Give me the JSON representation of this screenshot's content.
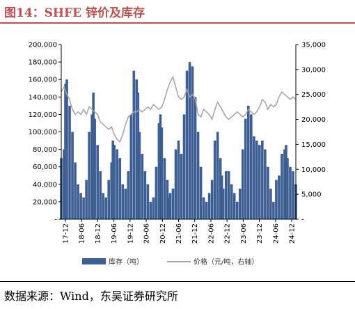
{
  "header": {
    "title": "图14：SHFE 锌价及库存"
  },
  "footer": {
    "source": "数据来源：Wind，东吴证券研究所"
  },
  "colors": {
    "title": "#c0504d",
    "inventory": "#3d5f93",
    "price": "#a6a6a6"
  },
  "chart_data": {
    "type": "bar",
    "x_tick_labels": [
      "17-12",
      "18-06",
      "18-12",
      "19-06",
      "19-12",
      "20-06",
      "20-12",
      "21-06",
      "21-12",
      "22-06",
      "22-12",
      "23-06",
      "23-12",
      "24-06",
      "24-12"
    ],
    "y_left": {
      "ylim": [
        0,
        200000
      ],
      "tick_labels": [
        "-",
        "20,000",
        "40,000",
        "60,000",
        "80,000",
        "100,000",
        "120,000",
        "140,000",
        "160,000",
        "180,000",
        "200,000"
      ]
    },
    "y_right": {
      "ylim": [
        0,
        35000
      ],
      "tick_labels": [
        "-",
        "5,000",
        "10,000",
        "15,000",
        "20,000",
        "25,000",
        "30,000",
        "35,000"
      ]
    },
    "legend": {
      "position": "bottom",
      "entries": [
        "库存（吨）",
        "价格（元/吨，右轴）"
      ]
    },
    "series": [
      {
        "name": "库存（吨）",
        "type": "bar",
        "axis": "left",
        "x": [
          0,
          1,
          1.5,
          2,
          3,
          4,
          5,
          6,
          7,
          8,
          9,
          10,
          11,
          11.5,
          12,
          13,
          14,
          15,
          16,
          17,
          18,
          18.5,
          19,
          20,
          21,
          22,
          23,
          24,
          25,
          26,
          27,
          27.5,
          28,
          29,
          30,
          31,
          32,
          33,
          34,
          35,
          35.5,
          36,
          37,
          38,
          38.5,
          39,
          40,
          41,
          42,
          43,
          44,
          45,
          46,
          47,
          48,
          49,
          50,
          51,
          52,
          53,
          54,
          55,
          56,
          57,
          57.5,
          58,
          59,
          60,
          61,
          62,
          63,
          64,
          65,
          66,
          67,
          68,
          69,
          70,
          71,
          72,
          73,
          74,
          75,
          76,
          77,
          78,
          79,
          80,
          80.5,
          81,
          82,
          83,
          84
        ],
        "values": [
          70000,
          80000,
          155000,
          160000,
          130000,
          100000,
          65000,
          40000,
          30000,
          25000,
          45000,
          100000,
          120000,
          145000,
          115000,
          85000,
          55000,
          30000,
          25000,
          45000,
          65000,
          90000,
          85000,
          80000,
          70000,
          40000,
          35000,
          55000,
          120000,
          170000,
          160000,
          145000,
          100000,
          75000,
          55000,
          40000,
          20000,
          25000,
          60000,
          110000,
          120000,
          105000,
          70000,
          45000,
          25000,
          30000,
          35000,
          80000,
          90000,
          75000,
          120000,
          170000,
          180000,
          175000,
          140000,
          100000,
          60000,
          25000,
          20000,
          30000,
          45000,
          90000,
          100000,
          70000,
          50000,
          35000,
          55000,
          55000,
          40000,
          30000,
          20000,
          35000,
          80000,
          115000,
          130000,
          120000,
          95000,
          90000,
          85000,
          90000,
          80000,
          60000,
          35000,
          20000,
          45000,
          50000,
          75000,
          80000,
          85000,
          70000,
          60000,
          55000,
          40000
        ],
        "description_note": ""
      },
      {
        "name": "价格（元/吨，右轴）",
        "type": "line",
        "axis": "right",
        "x": [
          0,
          1,
          2,
          3,
          4,
          5,
          6,
          7,
          8,
          9,
          10,
          11,
          12,
          13,
          14,
          15,
          16,
          17,
          18,
          19,
          20,
          21,
          22,
          23,
          24,
          25,
          26,
          27,
          28,
          29,
          30,
          31,
          32,
          33,
          34,
          35,
          36,
          37,
          38,
          39,
          40,
          41,
          42,
          43,
          44,
          45,
          46,
          47,
          48,
          49,
          50,
          51,
          52,
          53,
          54,
          55,
          56,
          57,
          58,
          59,
          60,
          61,
          62,
          63,
          64,
          65,
          66,
          67,
          68,
          69,
          70,
          71,
          72,
          73,
          74,
          75,
          76,
          77,
          78,
          79,
          80,
          81,
          82,
          83,
          84
        ],
        "values": [
          25500,
          26500,
          25000,
          24000,
          22000,
          21000,
          21500,
          21000,
          22000,
          21000,
          22500,
          22000,
          21500,
          21000,
          19500,
          19000,
          18500,
          18000,
          18500,
          17000,
          16000,
          15500,
          17000,
          19000,
          20500,
          21000,
          21500,
          21500,
          22000,
          21500,
          22000,
          22500,
          22000,
          23000,
          22500,
          22000,
          22500,
          24000,
          26000,
          27500,
          28500,
          26500,
          24500,
          24000,
          24500,
          26000,
          24500,
          25000,
          24000,
          21000,
          20500,
          22000,
          21500,
          21000,
          20000,
          22000,
          23500,
          22500,
          21500,
          20500,
          20000,
          20500,
          21000,
          21500,
          21000,
          20500,
          21000,
          22000,
          21500,
          21000,
          21500,
          22500,
          24000,
          23500,
          22000,
          23000,
          22500,
          23000,
          24500,
          25500,
          25000,
          24500,
          24000,
          24500,
          24000
        ]
      }
    ]
  }
}
